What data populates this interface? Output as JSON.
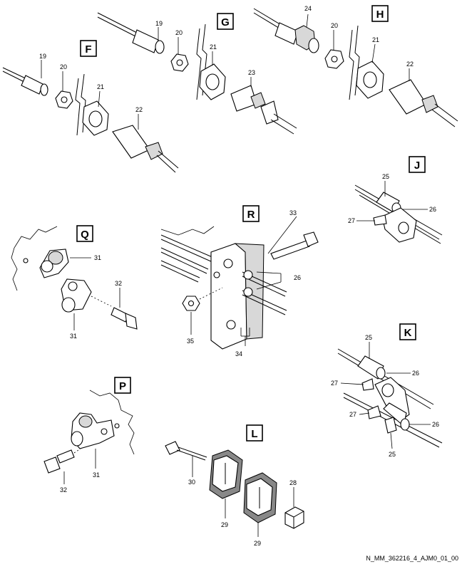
{
  "view_labels": [
    "F",
    "G",
    "H",
    "J",
    "Q",
    "R",
    "K",
    "P",
    "L"
  ],
  "part_numbers": {
    "F": [
      "19",
      "20",
      "21",
      "22"
    ],
    "G": [
      "19",
      "20",
      "21",
      "23"
    ],
    "H": [
      "24",
      "20",
      "21",
      "22"
    ],
    "J": [
      "25",
      "26",
      "27"
    ],
    "Q": [
      "31",
      "32",
      "31"
    ],
    "R": [
      "33",
      "26",
      "35",
      "34"
    ],
    "K": [
      "25",
      "26",
      "27",
      "27",
      "26",
      "25"
    ],
    "P": [
      "31",
      "32"
    ],
    "L": [
      "30",
      "28",
      "29",
      "29"
    ]
  },
  "reference": "N_MM_362216_4_AJM0_01_00"
}
